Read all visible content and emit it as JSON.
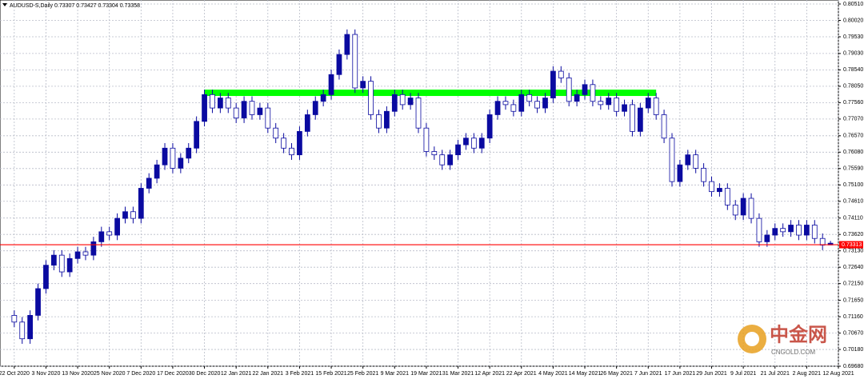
{
  "chart_data": {
    "type": "candlestick",
    "title": "AUDUSD-S,Daily 0.73307 0.73427 0.73304 0.73358",
    "up_color": "#0a0aa0",
    "down_color": "#ffffff",
    "grid": true,
    "xlim": [
      -1.8,
      104
    ],
    "ylim": [
      0.6968,
      0.8051
    ],
    "xticks": [
      {
        "value": 0,
        "label": "22 Oct 2020"
      },
      {
        "value": 4,
        "label": "3 Nov 2020"
      },
      {
        "value": 8,
        "label": "13 Nov 2020"
      },
      {
        "value": 12,
        "label": "25 Nov 2020"
      },
      {
        "value": 16,
        "label": "7 Dec 2020"
      },
      {
        "value": 20,
        "label": "17 Dec 2020"
      },
      {
        "value": 24,
        "label": "30 Dec 2020"
      },
      {
        "value": 28,
        "label": "12 Jan 2021"
      },
      {
        "value": 32,
        "label": "22 Jan 2021"
      },
      {
        "value": 36,
        "label": "3 Feb 2021"
      },
      {
        "value": 40,
        "label": "15 Feb 2021"
      },
      {
        "value": 44,
        "label": "25 Feb 2021"
      },
      {
        "value": 48,
        "label": "9 Mar 2021"
      },
      {
        "value": 52,
        "label": "19 Mar 2021"
      },
      {
        "value": 56,
        "label": "31 Mar 2021"
      },
      {
        "value": 60,
        "label": "12 Apr 2021"
      },
      {
        "value": 64,
        "label": "22 Apr 2021"
      },
      {
        "value": 68,
        "label": "4 May 2021"
      },
      {
        "value": 72,
        "label": "14 May 2021"
      },
      {
        "value": 76,
        "label": "26 May 2021"
      },
      {
        "value": 80,
        "label": "7 Jun 2021"
      },
      {
        "value": 84,
        "label": "17 Jun 2021"
      },
      {
        "value": 88,
        "label": "29 Jun 2021"
      },
      {
        "value": 92,
        "label": "9 Jul 2021"
      },
      {
        "value": 96,
        "label": "21 Jul 2021"
      },
      {
        "value": 100,
        "label": "2 Aug 2021"
      },
      {
        "value": 104,
        "label": "12 Aug 2021"
      }
    ],
    "yticks": [
      {
        "value": 0.8051,
        "label": "0.80510"
      },
      {
        "value": 0.8002,
        "label": "0.80020"
      },
      {
        "value": 0.7953,
        "label": "0.79530"
      },
      {
        "value": 0.7903,
        "label": "0.79030"
      },
      {
        "value": 0.7854,
        "label": "0.78540"
      },
      {
        "value": 0.7805,
        "label": "0.78050"
      },
      {
        "value": 0.7756,
        "label": "0.77560"
      },
      {
        "value": 0.7707,
        "label": "0.77070"
      },
      {
        "value": 0.7657,
        "label": "0.76570"
      },
      {
        "value": 0.7608,
        "label": "0.76080"
      },
      {
        "value": 0.7559,
        "label": "0.75590"
      },
      {
        "value": 0.751,
        "label": "0.75100"
      },
      {
        "value": 0.7461,
        "label": "0.74610"
      },
      {
        "value": 0.7411,
        "label": "0.74110"
      },
      {
        "value": 0.7362,
        "label": "0.73620"
      },
      {
        "value": 0.7313,
        "label": "0.73130"
      },
      {
        "value": 0.7264,
        "label": "0.72640"
      },
      {
        "value": 0.7215,
        "label": "0.72150"
      },
      {
        "value": 0.7165,
        "label": "0.71650"
      },
      {
        "value": 0.7116,
        "label": "0.71160"
      },
      {
        "value": 0.7067,
        "label": "0.70670"
      },
      {
        "value": 0.7018,
        "label": "0.70180"
      },
      {
        "value": 0.6968,
        "label": "0.69680"
      }
    ],
    "open": [
      0.712,
      0.71,
      0.705,
      0.712,
      0.72,
      0.727,
      0.73,
      0.725,
      0.729,
      0.731,
      0.73,
      0.734,
      0.737,
      0.736,
      0.741,
      0.743,
      0.741,
      0.75,
      0.753,
      0.757,
      0.762,
      0.756,
      0.759,
      0.762,
      0.77,
      0.778,
      0.774,
      0.777,
      0.774,
      0.771,
      0.776,
      0.772,
      0.774,
      0.768,
      0.765,
      0.762,
      0.76,
      0.767,
      0.772,
      0.776,
      0.778,
      0.784,
      0.79,
      0.796,
      0.78,
      0.782,
      0.772,
      0.768,
      0.773,
      0.778,
      0.775,
      0.777,
      0.768,
      0.761,
      0.76,
      0.757,
      0.76,
      0.763,
      0.765,
      0.762,
      0.765,
      0.772,
      0.776,
      0.775,
      0.773,
      0.778,
      0.776,
      0.774,
      0.777,
      0.785,
      0.783,
      0.776,
      0.778,
      0.781,
      0.776,
      0.775,
      0.777,
      0.773,
      0.775,
      0.767,
      0.774,
      0.777,
      0.772,
      0.765,
      0.752,
      0.757,
      0.76,
      0.756,
      0.752,
      0.749,
      0.75,
      0.745,
      0.742,
      0.747,
      0.741,
      0.734,
      0.736,
      0.738,
      0.737,
      0.739,
      0.736,
      0.739,
      0.735,
      0.73307
    ],
    "high": [
      0.7135,
      0.7115,
      0.7135,
      0.7215,
      0.7285,
      0.7315,
      0.7315,
      0.7305,
      0.7325,
      0.7325,
      0.7355,
      0.7385,
      0.7385,
      0.7425,
      0.7445,
      0.7445,
      0.7515,
      0.7545,
      0.7585,
      0.7635,
      0.7635,
      0.7605,
      0.7635,
      0.7715,
      0.7795,
      0.7795,
      0.7785,
      0.7785,
      0.7755,
      0.7775,
      0.7775,
      0.7755,
      0.7755,
      0.7695,
      0.7665,
      0.7635,
      0.7685,
      0.7735,
      0.7775,
      0.7795,
      0.7855,
      0.7915,
      0.7975,
      0.7975,
      0.7835,
      0.7835,
      0.7735,
      0.7745,
      0.7795,
      0.7795,
      0.7785,
      0.7785,
      0.7695,
      0.7625,
      0.7615,
      0.7615,
      0.7645,
      0.7665,
      0.7665,
      0.7665,
      0.7735,
      0.7775,
      0.7775,
      0.7765,
      0.7795,
      0.7795,
      0.7775,
      0.7785,
      0.7865,
      0.7865,
      0.7845,
      0.7795,
      0.7825,
      0.7825,
      0.7775,
      0.7785,
      0.7785,
      0.7765,
      0.7765,
      0.7755,
      0.7785,
      0.7785,
      0.7735,
      0.7665,
      0.7585,
      0.7615,
      0.7615,
      0.7575,
      0.7535,
      0.7515,
      0.7515,
      0.7465,
      0.7485,
      0.7485,
      0.7425,
      0.7375,
      0.7395,
      0.7395,
      0.7405,
      0.7405,
      0.7405,
      0.7405,
      0.7365,
      0.73427
    ],
    "low": [
      0.7085,
      0.7035,
      0.7035,
      0.7105,
      0.7185,
      0.7255,
      0.7235,
      0.7235,
      0.7275,
      0.7285,
      0.7285,
      0.7325,
      0.7345,
      0.7345,
      0.7395,
      0.7395,
      0.7395,
      0.7485,
      0.7515,
      0.7555,
      0.7545,
      0.7545,
      0.7575,
      0.7605,
      0.7685,
      0.7725,
      0.7725,
      0.7725,
      0.7695,
      0.7695,
      0.7705,
      0.7705,
      0.7665,
      0.7635,
      0.7605,
      0.7585,
      0.7585,
      0.7655,
      0.7705,
      0.7745,
      0.7765,
      0.7825,
      0.7885,
      0.7785,
      0.7785,
      0.7705,
      0.7665,
      0.7665,
      0.7715,
      0.7735,
      0.7735,
      0.7665,
      0.7595,
      0.7585,
      0.7555,
      0.7555,
      0.7585,
      0.7615,
      0.7605,
      0.7605,
      0.7635,
      0.7705,
      0.7735,
      0.7715,
      0.7715,
      0.7745,
      0.7725,
      0.7725,
      0.7755,
      0.7815,
      0.7745,
      0.7745,
      0.7765,
      0.7745,
      0.7735,
      0.7735,
      0.7715,
      0.7715,
      0.7655,
      0.7655,
      0.7725,
      0.7705,
      0.7635,
      0.7505,
      0.7505,
      0.7555,
      0.7545,
      0.7505,
      0.7475,
      0.7475,
      0.7435,
      0.7405,
      0.7405,
      0.7395,
      0.7325,
      0.7325,
      0.7345,
      0.7355,
      0.7355,
      0.7345,
      0.7345,
      0.7335,
      0.7315,
      0.73304
    ],
    "close": [
      0.71,
      0.705,
      0.712,
      0.72,
      0.727,
      0.73,
      0.725,
      0.729,
      0.731,
      0.73,
      0.734,
      0.737,
      0.736,
      0.741,
      0.743,
      0.741,
      0.75,
      0.753,
      0.757,
      0.762,
      0.756,
      0.759,
      0.762,
      0.77,
      0.778,
      0.774,
      0.777,
      0.774,
      0.771,
      0.776,
      0.772,
      0.774,
      0.768,
      0.765,
      0.762,
      0.76,
      0.767,
      0.772,
      0.776,
      0.778,
      0.784,
      0.79,
      0.796,
      0.78,
      0.782,
      0.772,
      0.768,
      0.773,
      0.778,
      0.775,
      0.777,
      0.768,
      0.761,
      0.76,
      0.757,
      0.76,
      0.763,
      0.765,
      0.762,
      0.765,
      0.772,
      0.776,
      0.775,
      0.773,
      0.778,
      0.776,
      0.774,
      0.777,
      0.785,
      0.783,
      0.776,
      0.778,
      0.781,
      0.776,
      0.775,
      0.777,
      0.773,
      0.775,
      0.767,
      0.774,
      0.777,
      0.772,
      0.765,
      0.752,
      0.757,
      0.76,
      0.756,
      0.752,
      0.749,
      0.75,
      0.745,
      0.742,
      0.747,
      0.741,
      0.734,
      0.736,
      0.738,
      0.737,
      0.739,
      0.736,
      0.739,
      0.735,
      0.733,
      0.73358
    ],
    "zones": [
      {
        "from": 0.7776,
        "to": 0.7795,
        "start": 24,
        "end": 81,
        "color": "#00ff00"
      }
    ],
    "hlines": [
      {
        "value": 0.73313,
        "color": "#ff0000"
      }
    ],
    "watermark": {
      "text": "中金网",
      "sub": "CNGOLD.COM"
    }
  }
}
